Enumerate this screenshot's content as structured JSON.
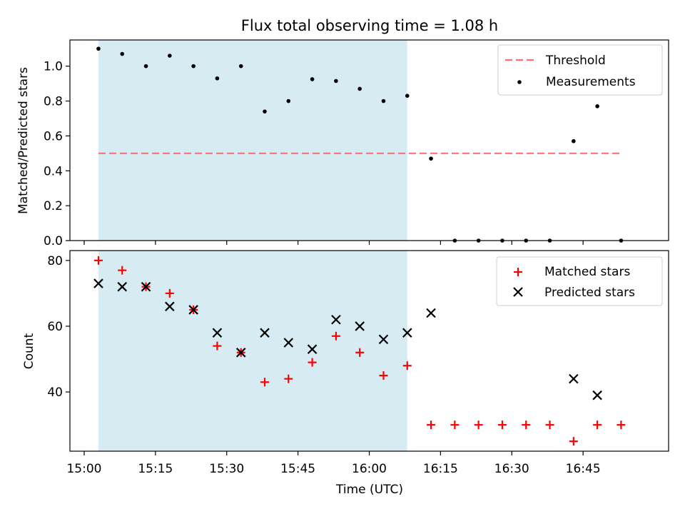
{
  "figure": {
    "title": "Flux total observing time = 1.08 h",
    "xlabel": "Time (UTC)"
  },
  "colors": {
    "shade": "#add8e6",
    "threshold": "#ff7070",
    "measurement": "#000000",
    "matched": "#ff0000",
    "predicted": "#000000"
  },
  "chart_data": [
    {
      "type": "scatter",
      "panel": "top",
      "ylabel": "Matched/Predicted stars",
      "xlim": [
        "14:57",
        "17:03"
      ],
      "ylim": [
        0,
        1.15
      ],
      "yticks": [
        0.0,
        0.2,
        0.4,
        0.6,
        0.8,
        1.0
      ],
      "ytick_labels": [
        "0.0",
        "0.2",
        "0.4",
        "0.6",
        "0.8",
        "1.0"
      ],
      "shaded_interval": [
        "15:03",
        "16:08"
      ],
      "threshold": {
        "name": "Threshold",
        "y": 0.5,
        "x_range": [
          "15:03",
          "16:53"
        ],
        "style": "dashed"
      },
      "legend": [
        "Threshold",
        "Measurements"
      ],
      "legend_position": "top-right",
      "series": [
        {
          "name": "Measurements",
          "x": [
            "15:03",
            "15:08",
            "15:13",
            "15:18",
            "15:23",
            "15:28",
            "15:33",
            "15:38",
            "15:43",
            "15:48",
            "15:53",
            "15:58",
            "16:03",
            "16:08",
            "16:13",
            "16:18",
            "16:23",
            "16:28",
            "16:33",
            "16:38",
            "16:43",
            "16:48",
            "16:53"
          ],
          "y": [
            1.1,
            1.07,
            1.0,
            1.06,
            1.0,
            0.93,
            1.0,
            0.74,
            0.8,
            0.925,
            0.915,
            0.87,
            0.8,
            0.83,
            0.47,
            0.0,
            0.0,
            0.0,
            0.0,
            0.0,
            0.57,
            0.77,
            0.0
          ]
        }
      ]
    },
    {
      "type": "scatter",
      "panel": "bottom",
      "ylabel": "Count",
      "xlim": [
        "14:57",
        "17:03"
      ],
      "ylim": [
        22,
        83
      ],
      "yticks": [
        40,
        60,
        80
      ],
      "ytick_labels": [
        "40",
        "60",
        "80"
      ],
      "xticks": [
        "15:00",
        "15:15",
        "15:30",
        "15:45",
        "16:00",
        "16:15",
        "16:30",
        "16:45"
      ],
      "xtick_labels": [
        "15:00",
        "15:15",
        "15:30",
        "15:45",
        "16:00",
        "16:15",
        "16:30",
        "16:45"
      ],
      "shaded_interval": [
        "15:03",
        "16:08"
      ],
      "legend": [
        "Matched stars",
        "Predicted stars"
      ],
      "legend_position": "top-right",
      "series": [
        {
          "name": "Matched stars",
          "marker": "plus",
          "x": [
            "15:03",
            "15:08",
            "15:13",
            "15:18",
            "15:23",
            "15:28",
            "15:33",
            "15:38",
            "15:43",
            "15:48",
            "15:53",
            "15:58",
            "16:03",
            "16:08",
            "16:13",
            "16:18",
            "16:23",
            "16:28",
            "16:33",
            "16:38",
            "16:43",
            "16:48",
            "16:53"
          ],
          "y": [
            80,
            77,
            72,
            70,
            65,
            54,
            52,
            43,
            44,
            49,
            57,
            52,
            45,
            48,
            30,
            30,
            30,
            30,
            30,
            30,
            25,
            30,
            30
          ]
        },
        {
          "name": "Predicted stars",
          "marker": "x",
          "x": [
            "15:03",
            "15:08",
            "15:13",
            "15:18",
            "15:23",
            "15:28",
            "15:33",
            "15:38",
            "15:43",
            "15:48",
            "15:53",
            "15:58",
            "16:03",
            "16:08",
            "16:13",
            "16:43",
            "16:48"
          ],
          "y": [
            73,
            72,
            72,
            66,
            65,
            58,
            52,
            58,
            55,
            53,
            62,
            60,
            56,
            58,
            64,
            44,
            39
          ]
        }
      ]
    }
  ]
}
